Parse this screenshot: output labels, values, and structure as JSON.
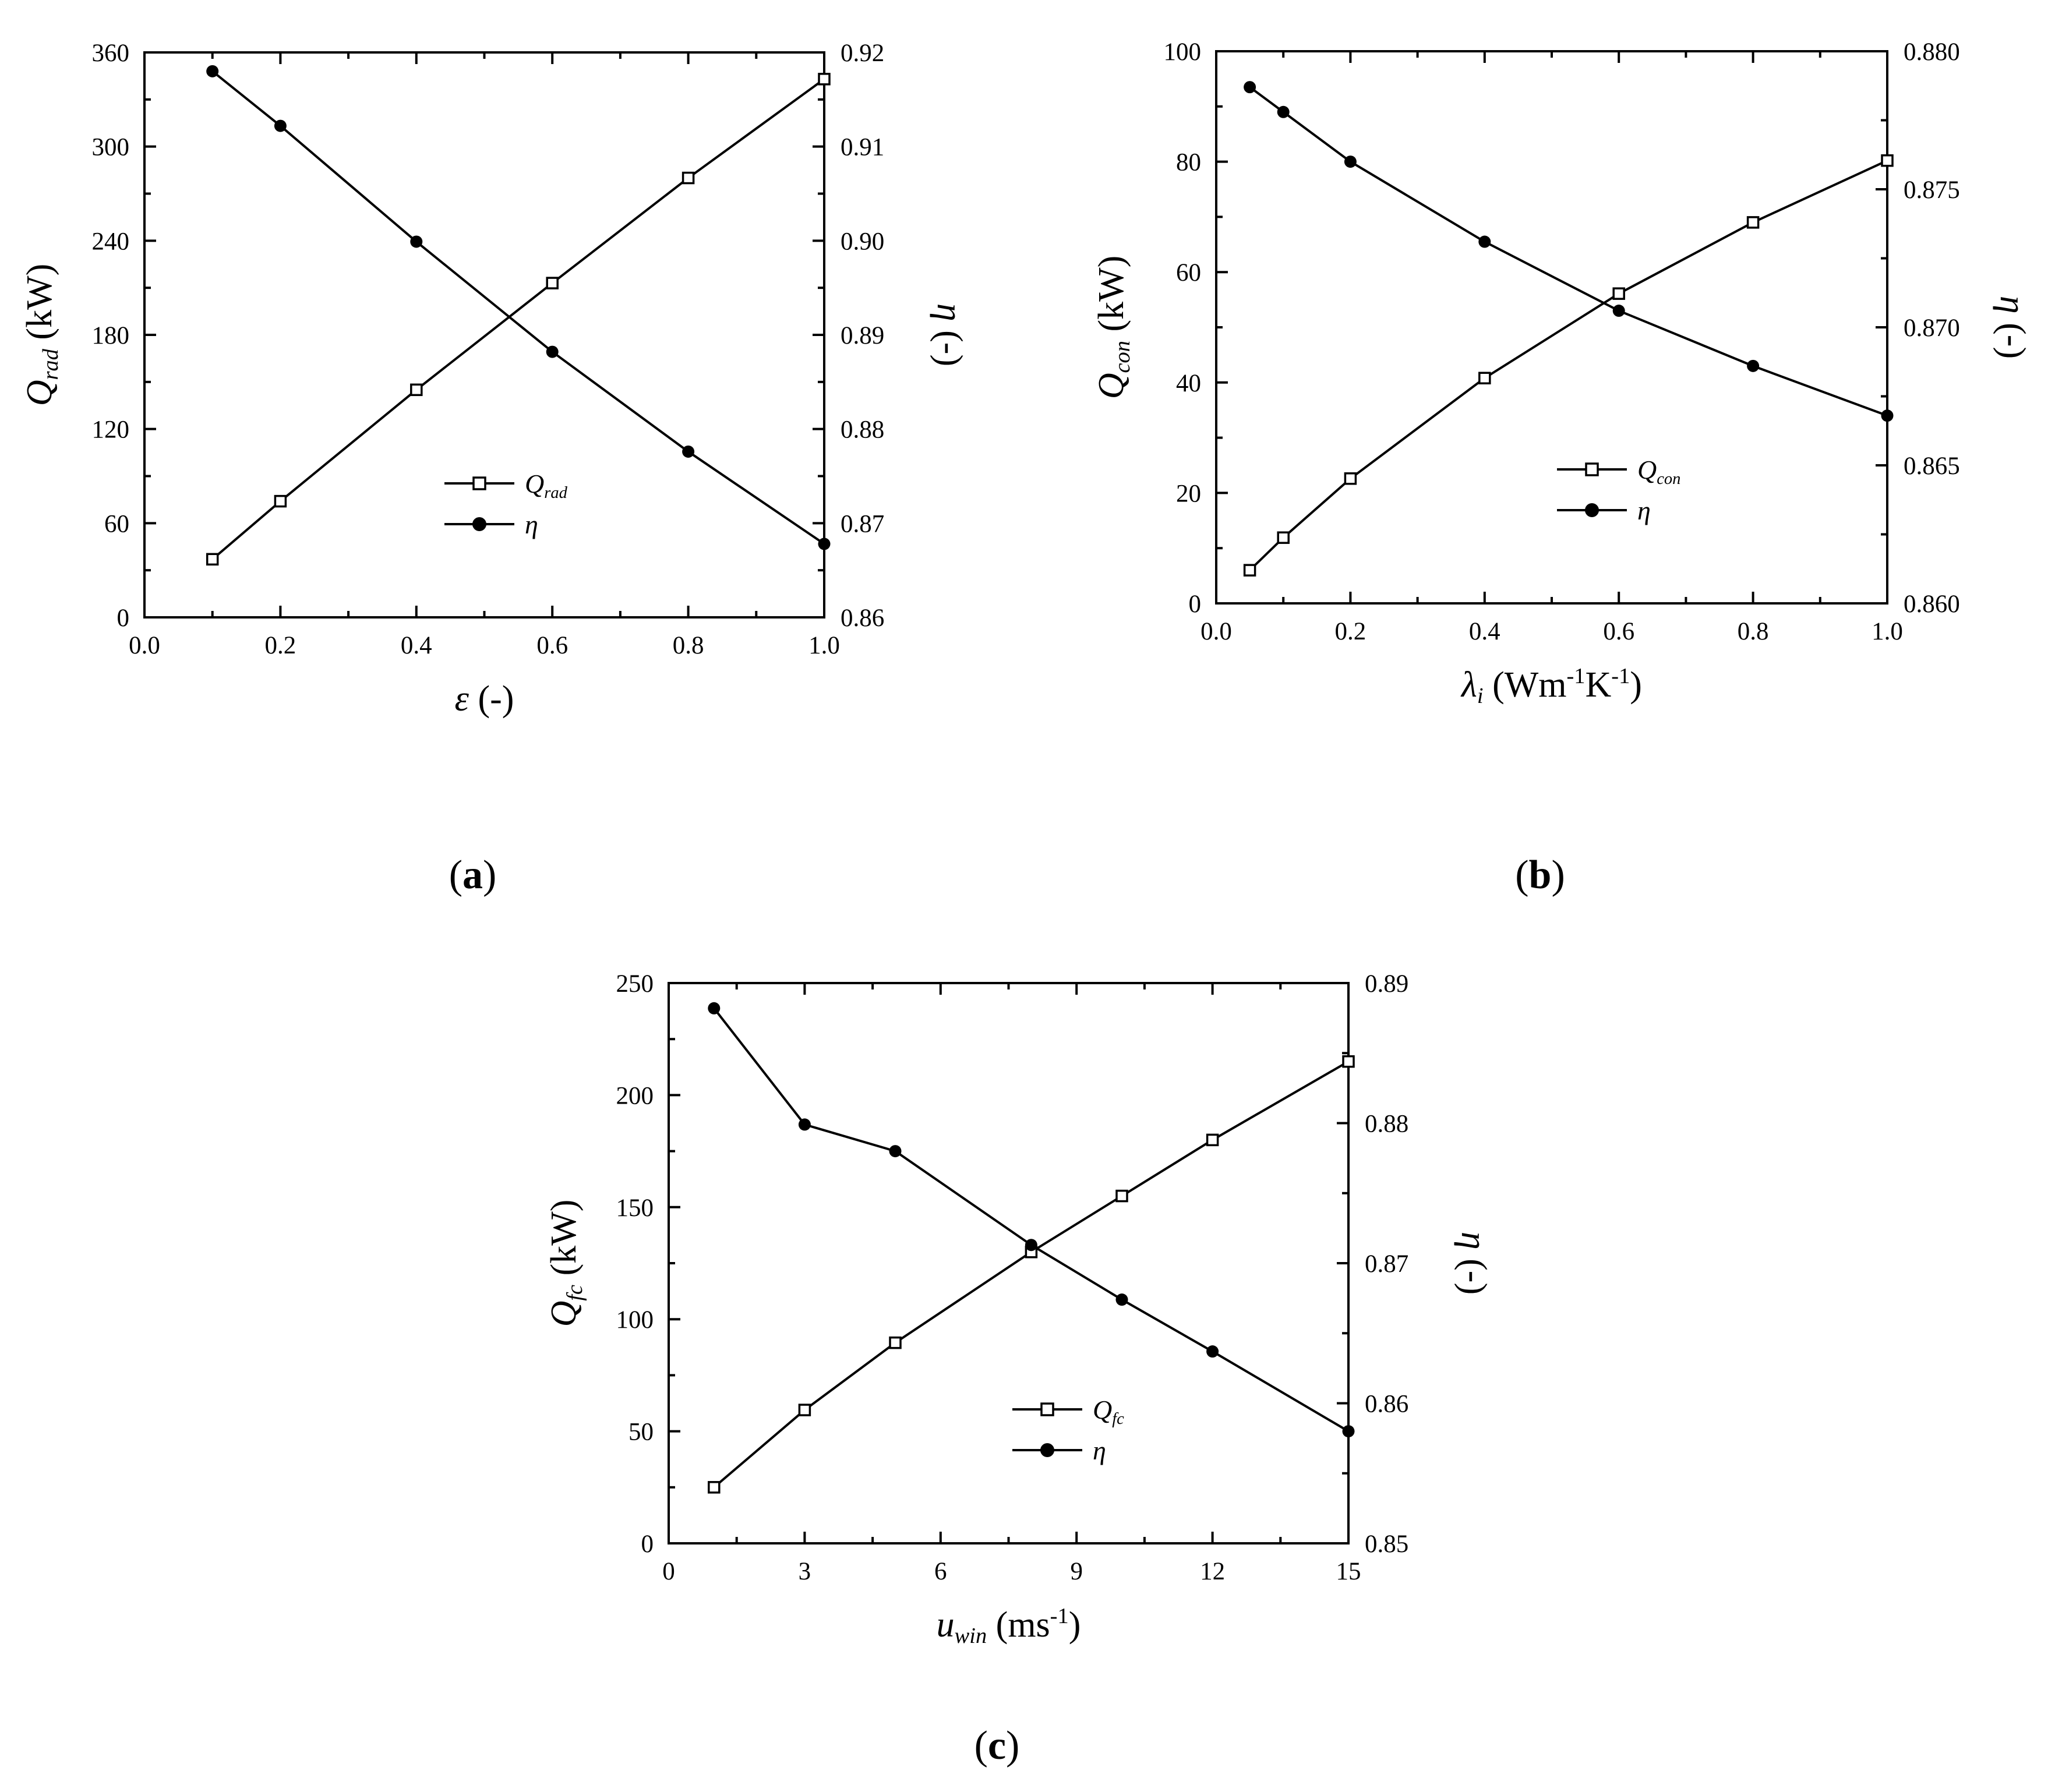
{
  "chart_data": [
    {
      "type": "line",
      "panel": "(a)",
      "x": [
        0.1,
        0.2,
        0.4,
        0.6,
        0.8,
        1.0
      ],
      "xlabel": {
        "main": "ε",
        "sub": "",
        "tail": "(-)"
      },
      "xlim": [
        0.0,
        1.0
      ],
      "xticks": [
        0.0,
        0.2,
        0.4,
        0.6,
        0.8,
        1.0
      ],
      "xtick_labels": [
        "0.0",
        "0.2",
        "0.4",
        "0.6",
        "0.8",
        "1.0"
      ],
      "ylabel_left": {
        "main": "Q",
        "sub": "rad",
        "tail": "(kW)"
      },
      "ylim_left": [
        0,
        360
      ],
      "yticks_left": [
        0,
        60,
        120,
        180,
        240,
        300,
        360
      ],
      "ytick_labels_left": [
        "0",
        "60",
        "120",
        "180",
        "240",
        "300",
        "360"
      ],
      "ylabel_right": {
        "main": "η",
        "tail": "(-)"
      },
      "ylim_right": [
        0.86,
        0.92
      ],
      "yticks_right": [
        0.86,
        0.87,
        0.88,
        0.89,
        0.9,
        0.91,
        0.92
      ],
      "ytick_labels_right": [
        "0.86",
        "0.87",
        "0.88",
        "0.89",
        "0.90",
        "0.91",
        "0.92"
      ],
      "series": [
        {
          "name": "Q",
          "name_sub": "rad",
          "axis": "left",
          "marker": "open-square",
          "values": [
            37,
            74,
            145,
            213,
            280,
            343
          ]
        },
        {
          "name": "η",
          "name_sub": "",
          "axis": "right",
          "marker": "filled-circle",
          "values": [
            0.918,
            0.9122,
            0.8999,
            0.8882,
            0.8776,
            0.8678
          ]
        }
      ],
      "legend": "center-bottom",
      "grid": false
    },
    {
      "type": "line",
      "panel": "(b)",
      "x": [
        0.05,
        0.1,
        0.2,
        0.4,
        0.6,
        0.8,
        1.0
      ],
      "xlabel": {
        "main": "λ",
        "sub": "i",
        "tail": "(Wm-1K-1)"
      },
      "xlim": [
        0.0,
        1.0
      ],
      "xticks": [
        0.0,
        0.2,
        0.4,
        0.6,
        0.8,
        1.0
      ],
      "xtick_labels": [
        "0.0",
        "0.2",
        "0.4",
        "0.6",
        "0.8",
        "1.0"
      ],
      "ylabel_left": {
        "main": "Q",
        "sub": "con",
        "tail": "(kW)"
      },
      "ylim_left": [
        0,
        100
      ],
      "yticks_left": [
        0,
        20,
        40,
        60,
        80,
        100
      ],
      "ytick_labels_left": [
        "0",
        "20",
        "40",
        "60",
        "80",
        "100"
      ],
      "ylabel_right": {
        "main": "η",
        "tail": "(-)"
      },
      "ylim_right": [
        0.86,
        0.88
      ],
      "yticks_right": [
        0.86,
        0.865,
        0.87,
        0.875,
        0.88
      ],
      "ytick_labels_right": [
        "0.860",
        "0.865",
        "0.870",
        "0.875",
        "0.880"
      ],
      "series": [
        {
          "name": "Q",
          "name_sub": "con",
          "axis": "left",
          "marker": "open-square",
          "values": [
            6,
            11.9,
            22.6,
            40.8,
            56.1,
            69.0,
            80.2
          ]
        },
        {
          "name": "η",
          "name_sub": "",
          "axis": "right",
          "marker": "filled-circle",
          "values": [
            0.8787,
            0.8778,
            0.876,
            0.8731,
            0.8706,
            0.8686,
            0.8668
          ]
        }
      ],
      "legend": "center-bottom",
      "grid": false
    },
    {
      "type": "line",
      "panel": "(c)",
      "x": [
        1,
        3,
        5,
        8,
        10,
        12,
        15
      ],
      "xlabel": {
        "main": "u",
        "sub": "win",
        "tail": "(ms-1)"
      },
      "xlim": [
        0,
        15
      ],
      "xticks": [
        0,
        3,
        6,
        9,
        12,
        15
      ],
      "xtick_labels": [
        "0",
        "3",
        "6",
        "9",
        "12",
        "15"
      ],
      "ylabel_left": {
        "main": "Q",
        "sub": "fc",
        "tail": "(kW)"
      },
      "ylim_left": [
        0,
        250
      ],
      "yticks_left": [
        0,
        50,
        100,
        150,
        200,
        250
      ],
      "ytick_labels_left": [
        "0",
        "50",
        "100",
        "150",
        "200",
        "250"
      ],
      "ylabel_right": {
        "main": "η",
        "tail": "(-)"
      },
      "ylim_right": [
        0.85,
        0.89
      ],
      "yticks_right": [
        0.85,
        0.86,
        0.87,
        0.88,
        0.89
      ],
      "ytick_labels_right": [
        "0.85",
        "0.86",
        "0.87",
        "0.88",
        "0.89"
      ],
      "series": [
        {
          "name": "Q",
          "name_sub": "fc",
          "axis": "left",
          "marker": "open-square",
          "values": [
            25,
            59.5,
            89.5,
            130,
            155,
            180,
            215
          ]
        },
        {
          "name": "η",
          "name_sub": "",
          "axis": "right",
          "marker": "filled-circle",
          "values": [
            0.8882,
            0.8799,
            0.878,
            0.8713,
            0.8674,
            0.8637,
            0.858
          ]
        }
      ],
      "legend": "center-bottom",
      "grid": false
    }
  ]
}
